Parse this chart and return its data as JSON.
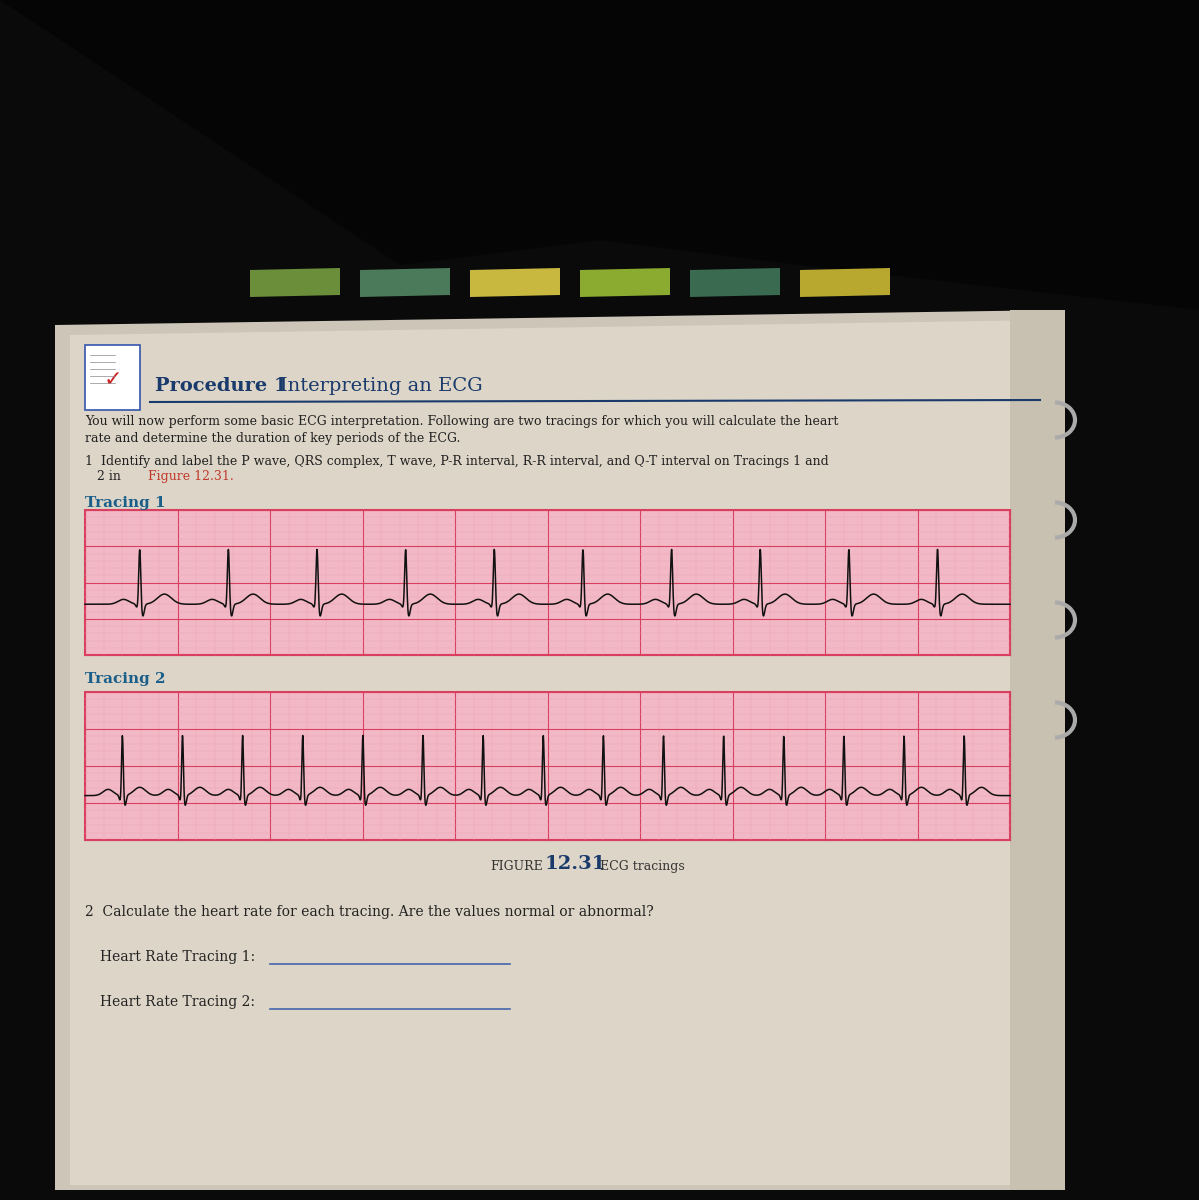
{
  "bg_black": "#0a0a0a",
  "page_bg": "#d8d0c4",
  "content_bg": "#e0d8cc",
  "title_bold": "Procedure 1",
  "title_normal": "Interpreting an ECG",
  "title_color": "#1a3a6b",
  "line_color": "#1a3a6b",
  "body1": "You will now perform some basic ECG interpretation. Following are two tracings for which you will calculate the heart",
  "body1b": "rate and determine the duration of key periods of the ECG.",
  "body2a": "1  Identify and label the P wave, QRS complex, T wave, P-R interval, R-R interval, and Q-T interval on Tracings 1 and",
  "body2b": "   2 in ",
  "figure_ref": "Figure 12.31.",
  "figure_ref_color": "#c0392b",
  "tracing1_label": "Tracing 1",
  "tracing2_label": "Tracing 2",
  "label_color": "#1a5e8a",
  "ecg_bg": "#f2b8c6",
  "ecg_major_color": "#d94060",
  "ecg_minor_color": "#eda0b0",
  "ecg_line_color": "#111111",
  "figure_label": "FIGURE",
  "figure_number": "12.31",
  "figure_caption": "ECG tracings",
  "figure_number_color": "#1a3a6b",
  "q2_text": "2  Calculate the heart rate for each tracing. Are the values normal or abnormal?",
  "hr1_label": "Heart Rate Tracing 1:",
  "hr2_label": "Heart Rate Tracing 2:",
  "underline_color": "#4466aa"
}
